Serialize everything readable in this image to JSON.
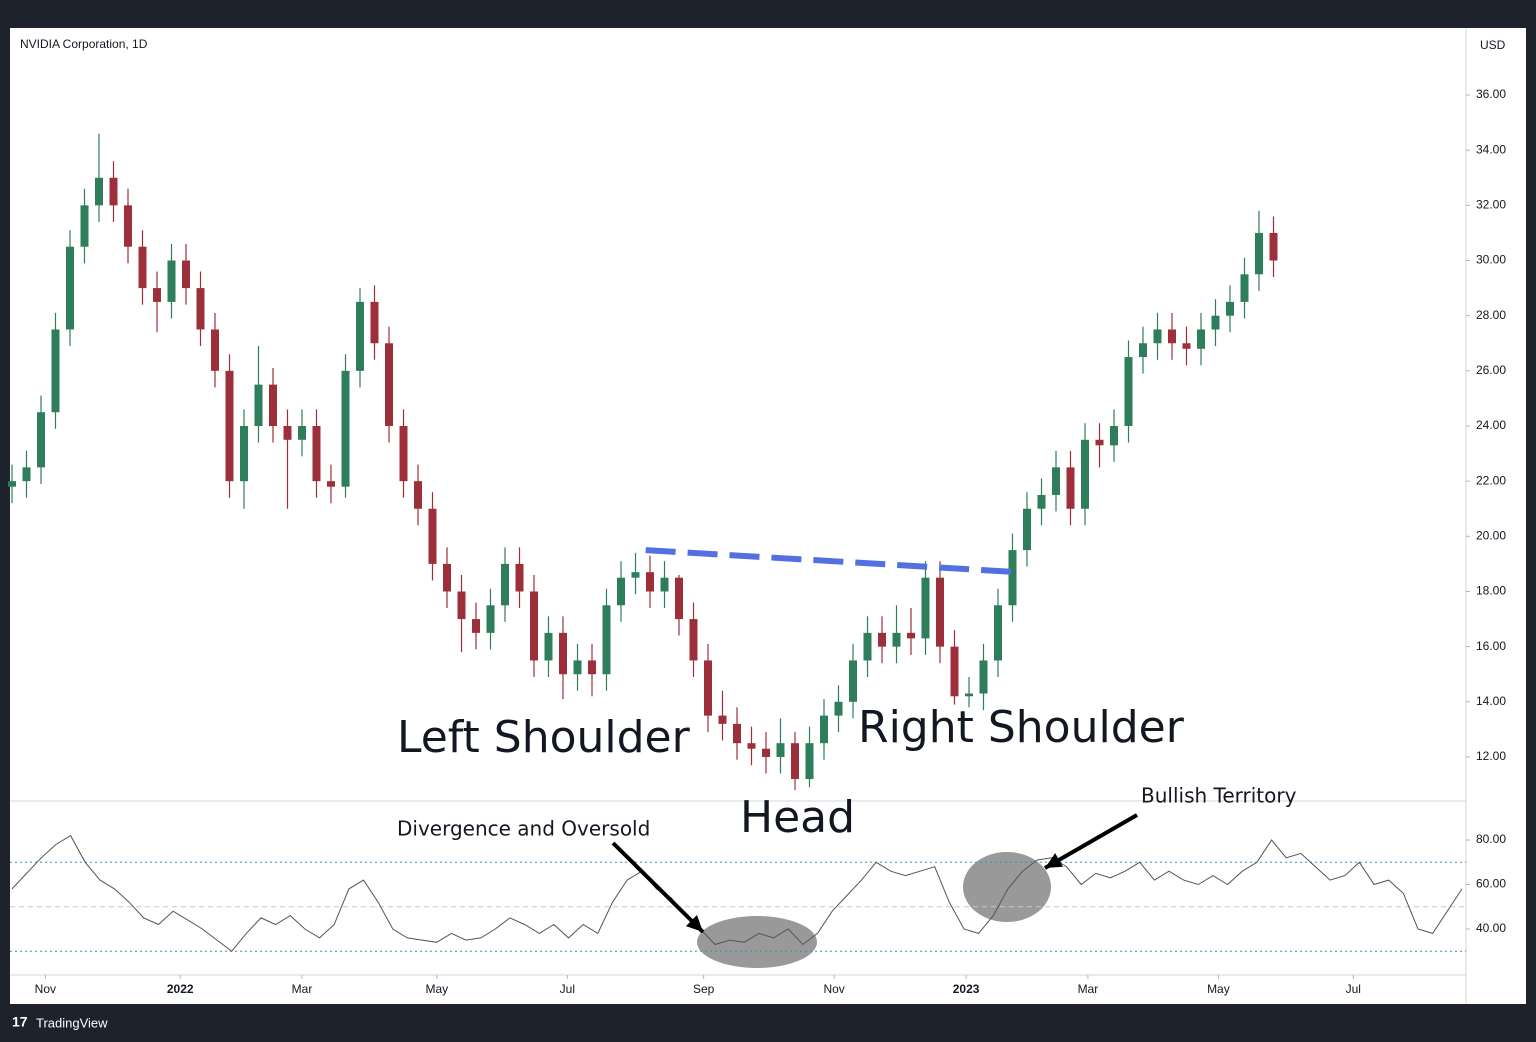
{
  "chart_data": [
    {
      "type": "candlestick",
      "title": "NVIDIA Corporation, 1D",
      "y_label": "USD",
      "up_color": "#2e7d5b",
      "down_color": "#9c2f3a",
      "open": [
        21.8,
        22,
        22.5,
        24.5,
        27.5,
        30.5,
        32,
        33,
        32,
        30.5,
        29,
        28.5,
        30,
        29,
        27.5,
        26,
        22,
        24,
        25.5,
        24,
        23.5,
        24,
        22,
        21.8,
        26,
        28.5,
        27,
        24,
        22,
        21,
        19,
        18,
        17,
        16.5,
        17.5,
        19,
        18,
        15.5,
        16.5,
        15,
        15.5,
        15,
        17.5,
        18.5,
        18.7,
        18,
        18.5,
        17,
        15.5,
        13.5,
        13.2,
        12.5,
        12.3,
        12,
        12.5,
        11.2,
        12.5,
        13.5,
        14,
        15.5,
        16.5,
        16,
        16.5,
        16.3,
        18.5,
        16,
        14.2,
        14.3,
        15.5,
        17.5,
        19.5,
        21,
        21.5,
        22.5,
        21,
        23.5,
        23.3,
        24,
        26.5,
        27,
        27.5,
        27,
        26.8,
        27.5,
        28,
        28.5,
        29.5,
        31
      ],
      "high": [
        22.6,
        23.1,
        25.1,
        28.1,
        31.1,
        32.6,
        34.6,
        33.6,
        32.6,
        31.1,
        29.6,
        30.6,
        30.6,
        29.6,
        28.1,
        26.6,
        24.6,
        26.9,
        26.1,
        24.6,
        24.6,
        24.6,
        22.6,
        26.6,
        29,
        29.1,
        27.6,
        24.6,
        22.6,
        21.6,
        19.6,
        18.6,
        17.6,
        18.1,
        19.6,
        19.6,
        18.6,
        17.1,
        17.1,
        16.1,
        16.1,
        18.1,
        19.1,
        19.4,
        19.3,
        19.1,
        18.6,
        17.6,
        16.1,
        14.4,
        13.8,
        13.1,
        12.9,
        13.4,
        12.9,
        13.1,
        14.1,
        14.6,
        16.1,
        17.1,
        17.1,
        17.5,
        17.4,
        19.1,
        19.1,
        16.6,
        14.9,
        16.1,
        18.1,
        20.1,
        21.6,
        22.1,
        23.1,
        23.1,
        24.1,
        24.1,
        24.6,
        27.1,
        27.6,
        28.1,
        28.1,
        27.6,
        28.1,
        28.6,
        29.1,
        30.1,
        31.8,
        31.6
      ],
      "low": [
        21.2,
        21.4,
        21.9,
        23.9,
        26.9,
        29.9,
        31.4,
        31.4,
        29.9,
        28.4,
        27.4,
        27.9,
        28.4,
        26.9,
        25.4,
        21.4,
        21,
        23.4,
        23.4,
        21,
        22.9,
        21.4,
        21.2,
        21.4,
        25.4,
        26.4,
        23.4,
        21.4,
        20.4,
        18.4,
        17.4,
        15.8,
        15.9,
        15.9,
        16.9,
        17.4,
        14.9,
        14.9,
        14.1,
        14.4,
        14.2,
        14.4,
        16.9,
        17.9,
        17.4,
        17.4,
        16.4,
        14.9,
        12.9,
        12.6,
        11.9,
        11.7,
        11.4,
        11.4,
        10.8,
        10.9,
        11.9,
        12.9,
        13.4,
        14.9,
        15.4,
        15.4,
        15.7,
        15.7,
        15.4,
        13.9,
        13.8,
        13.7,
        14.9,
        16.9,
        18.9,
        20.4,
        20.9,
        20.4,
        20.4,
        22.5,
        22.7,
        23.4,
        25.9,
        26.4,
        26.4,
        26.2,
        26.2,
        26.9,
        27.4,
        27.9,
        28.9,
        29.4
      ],
      "close": [
        22,
        22.5,
        24.5,
        27.5,
        30.5,
        32,
        33,
        32,
        30.5,
        29,
        28.5,
        30,
        29,
        27.5,
        26,
        22,
        24,
        25.5,
        24,
        23.5,
        24,
        22,
        21.8,
        26,
        28.5,
        27,
        24,
        22,
        21,
        19,
        18,
        17,
        16.5,
        17.5,
        19,
        18,
        15.5,
        16.5,
        15,
        15.5,
        15,
        17.5,
        18.5,
        18.7,
        18,
        18.5,
        17,
        15.5,
        13.5,
        13.2,
        12.5,
        12.3,
        12,
        12.5,
        11.2,
        12.5,
        13.5,
        14,
        15.5,
        16.5,
        16,
        16.5,
        16.3,
        18.5,
        16,
        14.2,
        14.3,
        15.5,
        17.5,
        19.5,
        21,
        21.5,
        22.5,
        21,
        23.5,
        23.3,
        24,
        26.5,
        27,
        27.5,
        27,
        26.8,
        27.5,
        28,
        28.5,
        29.5,
        31,
        30
      ],
      "ylim": [
        10.44,
        38.43
      ],
      "yticks": [
        {
          "value": 12,
          "label": "12.00"
        },
        {
          "value": 14,
          "label": "14.00"
        },
        {
          "value": 16,
          "label": "16.00"
        },
        {
          "value": 18,
          "label": "18.00"
        },
        {
          "value": 20,
          "label": "20.00"
        },
        {
          "value": 22,
          "label": "22.00"
        },
        {
          "value": 24,
          "label": "24.00"
        },
        {
          "value": 26,
          "label": "26.00"
        },
        {
          "value": 28,
          "label": "28.00"
        },
        {
          "value": 30,
          "label": "30.00"
        },
        {
          "value": 32,
          "label": "32.00"
        },
        {
          "value": 34,
          "label": "34.00"
        },
        {
          "value": 36,
          "label": "36.00"
        }
      ],
      "xlim": [
        0,
        100
      ],
      "xticks": [
        {
          "value": 2.3,
          "label": "Nov"
        },
        {
          "value": 11.6,
          "label": "2022"
        },
        {
          "value": 20,
          "label": "Mar"
        },
        {
          "value": 29.3,
          "label": "May"
        },
        {
          "value": 38.3,
          "label": "Jul"
        },
        {
          "value": 47.7,
          "label": "Sep"
        },
        {
          "value": 56.7,
          "label": "Nov"
        },
        {
          "value": 65.8,
          "label": "2023"
        },
        {
          "value": 74.2,
          "label": "Mar"
        },
        {
          "value": 83.2,
          "label": "May"
        },
        {
          "value": 92.5,
          "label": "Jul"
        }
      ],
      "neckline": {
        "x": [
          43.7,
          69.4
        ],
        "values": [
          19.5,
          18.7
        ],
        "color": "#5470e0"
      },
      "annotations": [
        "Left Shoulder",
        "Right Shoulder",
        "Head",
        "Divergence and Oversold",
        "Bullish Territory"
      ]
    },
    {
      "type": "line",
      "color": "#555555",
      "values": [
        58,
        65,
        72,
        78,
        82,
        70,
        62,
        58,
        52,
        45,
        42,
        48,
        44,
        40,
        35,
        30,
        38,
        45,
        42,
        46,
        40,
        36,
        42,
        58,
        62,
        52,
        40,
        36,
        35,
        34,
        38,
        35,
        36,
        40,
        45,
        42,
        38,
        42,
        36,
        42,
        38,
        52,
        62,
        66,
        58,
        54,
        46,
        40,
        33,
        35,
        34,
        38,
        36,
        40,
        33,
        38,
        48,
        55,
        62,
        70,
        66,
        64,
        66,
        68,
        52,
        40,
        38,
        46,
        58,
        66,
        71,
        72,
        68,
        60,
        65,
        63,
        66,
        70,
        62,
        66,
        62,
        60,
        64,
        60,
        66,
        70,
        80,
        72,
        74,
        68,
        62,
        64,
        70,
        60,
        62,
        56,
        40,
        38,
        48,
        58
      ],
      "ylim": [
        19.3,
        97.1
      ],
      "yticks": [
        {
          "value": 40,
          "label": "40.00"
        },
        {
          "value": 60,
          "label": "60.00"
        },
        {
          "value": 80,
          "label": "80.00"
        }
      ],
      "levels": [
        30,
        50,
        70
      ]
    }
  ],
  "footer": "TradingView"
}
